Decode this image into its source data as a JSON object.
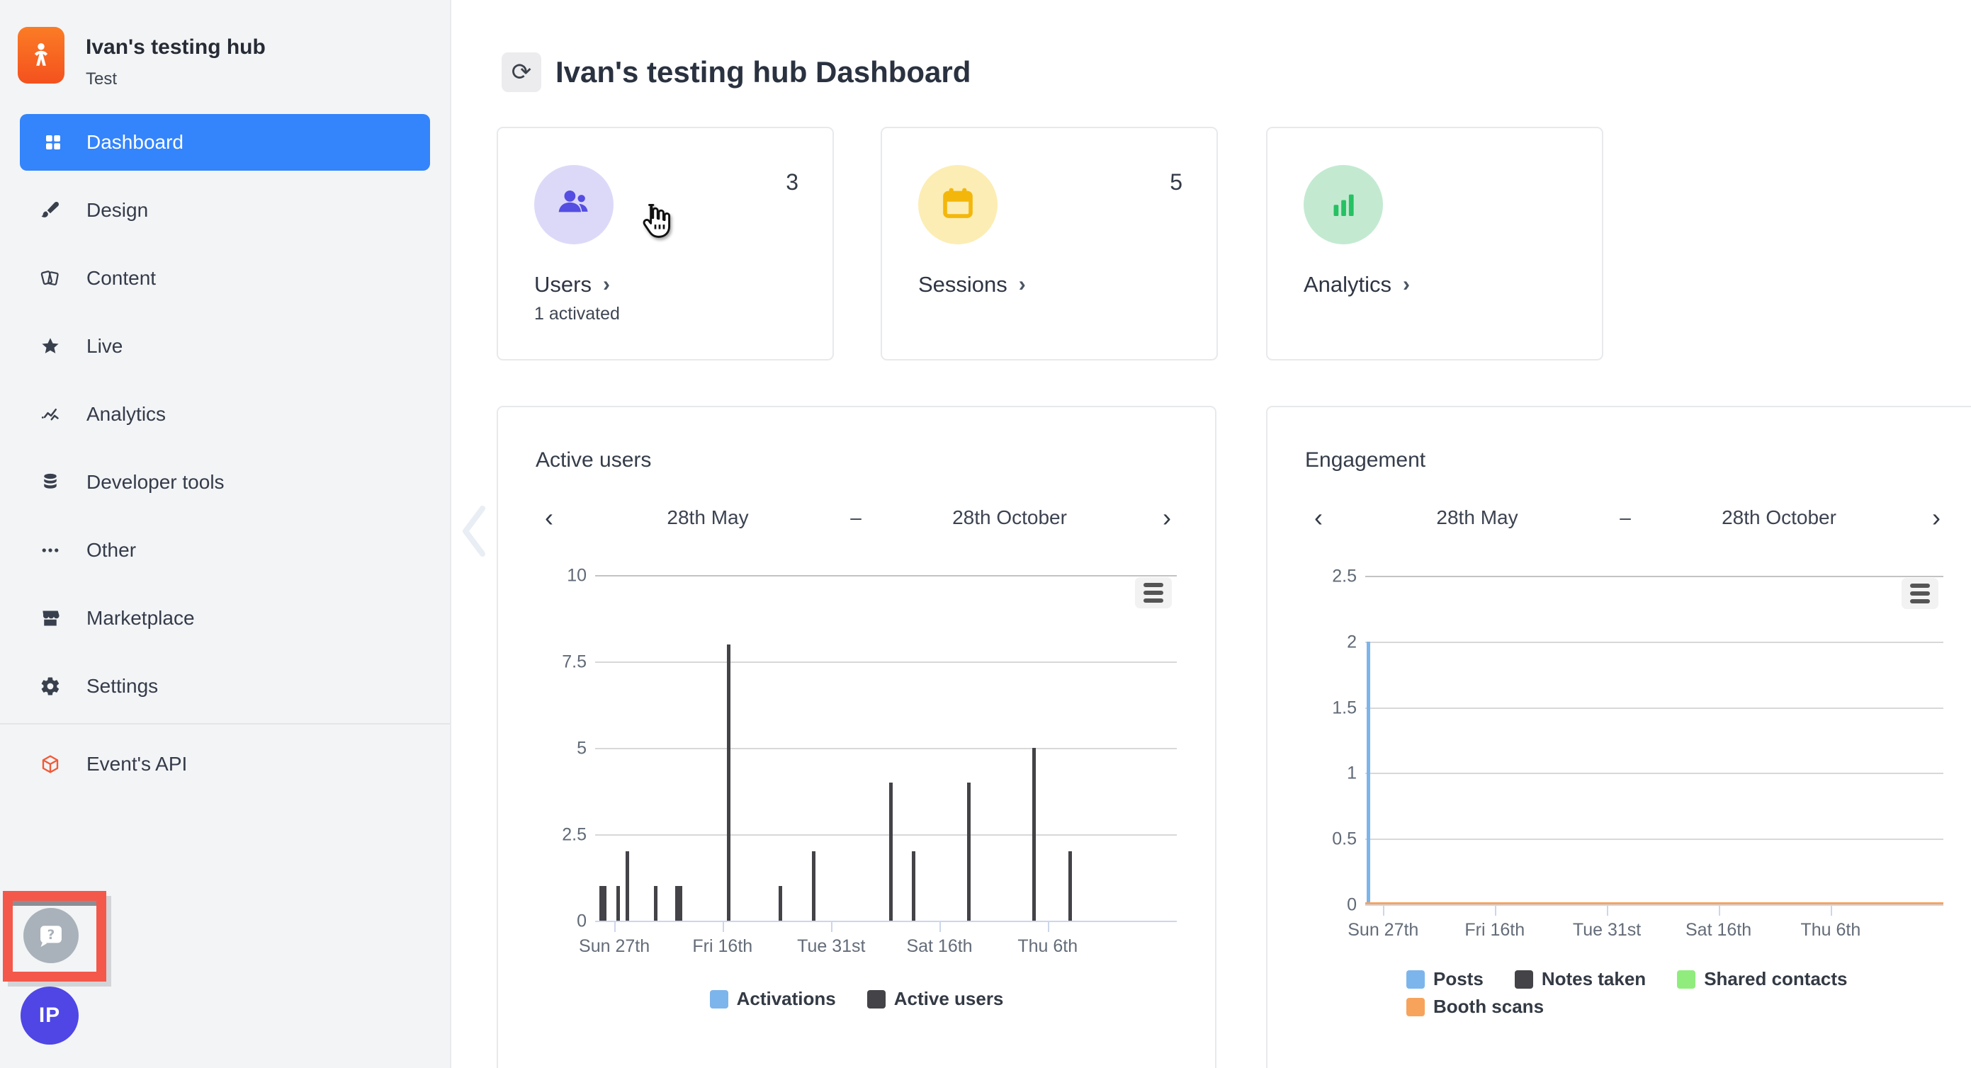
{
  "sidebar": {
    "org": {
      "name": "Ivan's testing hub",
      "subtitle": "Test"
    },
    "items": [
      {
        "label": "Dashboard",
        "icon": "grid-icon",
        "active": true
      },
      {
        "label": "Design",
        "icon": "brush-icon"
      },
      {
        "label": "Content",
        "icon": "cards-icon"
      },
      {
        "label": "Live",
        "icon": "star-icon"
      },
      {
        "label": "Analytics",
        "icon": "pulse-icon"
      },
      {
        "label": "Developer tools",
        "icon": "database-icon"
      },
      {
        "label": "Other",
        "icon": "dots-icon"
      },
      {
        "label": "Marketplace",
        "icon": "store-icon"
      },
      {
        "label": "Settings",
        "icon": "gear-icon"
      }
    ],
    "footer_item": {
      "label": "Event's API",
      "icon": "cube-icon"
    },
    "avatar_initials": "IP"
  },
  "header": {
    "title": "Ivan's testing hub Dashboard"
  },
  "cards": [
    {
      "label": "Users",
      "chevron": "›",
      "count": "3",
      "sub": "1 activated",
      "icon": "users-icon",
      "circle_bg": "#dcd9f8",
      "accent": "#554ee2"
    },
    {
      "label": "Sessions",
      "chevron": "›",
      "count": "5",
      "sub": "",
      "icon": "calendar-icon",
      "circle_bg": "#fcedb4",
      "accent": "#f3b70b"
    },
    {
      "label": "Analytics",
      "chevron": "›",
      "count": "",
      "sub": "",
      "icon": "bar-chart-icon",
      "circle_bg": "#c3ead1",
      "accent": "#25c163"
    }
  ],
  "chart_data": [
    {
      "type": "bar",
      "title": "Active users",
      "nav": {
        "prev": "‹",
        "range_start": "28th May",
        "separator": "–",
        "range_end": "28th October",
        "next": "›"
      },
      "ylim": [
        0,
        10
      ],
      "y_ticks": [
        {
          "label": "10",
          "v": 10
        },
        {
          "label": "7.5",
          "v": 7.5
        },
        {
          "label": "5",
          "v": 5
        },
        {
          "label": "2.5",
          "v": 2.5
        },
        {
          "label": "0",
          "v": 0
        }
      ],
      "x_ticks": [
        {
          "label": "Sun 27th",
          "f": 0.033
        },
        {
          "label": "Fri 16th",
          "f": 0.219
        },
        {
          "label": "Tue 31st",
          "f": 0.406
        },
        {
          "label": "Sat 16th",
          "f": 0.592
        },
        {
          "label": "Thu 6th",
          "f": 0.778
        }
      ],
      "series": [
        {
          "name": "Activations",
          "color": "#7cb5ec",
          "points": []
        },
        {
          "name": "Active users",
          "color": "#434348",
          "points": [
            {
              "x": 0.01,
              "y": 1
            },
            {
              "x": 0.017,
              "y": 1
            },
            {
              "x": 0.04,
              "y": 1
            },
            {
              "x": 0.055,
              "y": 2
            },
            {
              "x": 0.104,
              "y": 1
            },
            {
              "x": 0.141,
              "y": 1
            },
            {
              "x": 0.147,
              "y": 1
            },
            {
              "x": 0.23,
              "y": 8
            },
            {
              "x": 0.319,
              "y": 1
            },
            {
              "x": 0.376,
              "y": 2
            },
            {
              "x": 0.509,
              "y": 4
            },
            {
              "x": 0.548,
              "y": 2
            },
            {
              "x": 0.643,
              "y": 4
            },
            {
              "x": 0.754,
              "y": 5
            },
            {
              "x": 0.817,
              "y": 2
            }
          ]
        }
      ],
      "legend": [
        {
          "label": "Activations",
          "color": "#7cb5ec"
        },
        {
          "label": "Active users",
          "color": "#434348"
        }
      ],
      "legend_layout": "centered"
    },
    {
      "type": "bar",
      "title": "Engagement",
      "nav": {
        "prev": "‹",
        "range_start": "28th May",
        "separator": "–",
        "range_end": "28th October",
        "next": "›"
      },
      "ylim": [
        0,
        2.5
      ],
      "y_ticks": [
        {
          "label": "2.5",
          "v": 2.5
        },
        {
          "label": "2",
          "v": 2
        },
        {
          "label": "1.5",
          "v": 1.5
        },
        {
          "label": "1",
          "v": 1
        },
        {
          "label": "0.5",
          "v": 0.5
        },
        {
          "label": "0",
          "v": 0
        }
      ],
      "x_ticks": [
        {
          "label": "Sun 27th",
          "f": 0.031
        },
        {
          "label": "Fri 16th",
          "f": 0.224
        },
        {
          "label": "Tue 31st",
          "f": 0.418
        },
        {
          "label": "Sat 16th",
          "f": 0.611
        },
        {
          "label": "Thu 6th",
          "f": 0.805
        }
      ],
      "series": [
        {
          "name": "Posts",
          "color": "#7cb5ec",
          "points": [
            {
              "x": 0.005,
              "y": 2
            }
          ]
        },
        {
          "name": "Notes taken",
          "color": "#434348",
          "points": []
        },
        {
          "name": "Shared contacts",
          "color": "#90ed7d",
          "points": []
        },
        {
          "name": "Booth scans",
          "color": "#f7a35c",
          "points": [],
          "flat_line_y": 0
        }
      ],
      "legend": [
        {
          "label": "Posts",
          "color": "#7cb5ec"
        },
        {
          "label": "Notes taken",
          "color": "#434348"
        },
        {
          "label": "Shared contacts",
          "color": "#90ed7d"
        },
        {
          "label": "Booth scans",
          "color": "#f7a35c"
        }
      ],
      "legend_layout": "wrapped"
    }
  ]
}
